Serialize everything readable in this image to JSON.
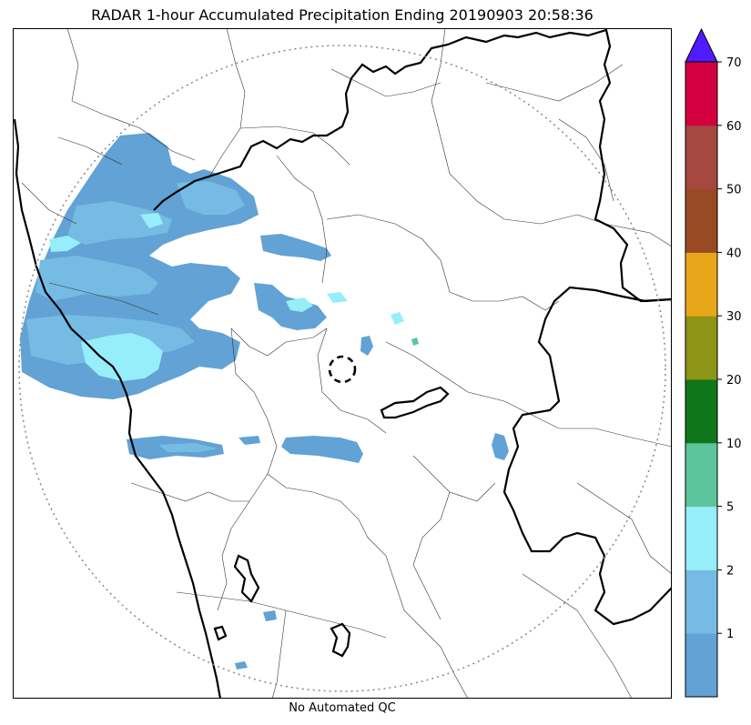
{
  "title": "RADAR 1-hour Accumulated Precipitation Ending 20190903 20:58:36",
  "footer": "No Automated QC",
  "colorbar": {
    "levels": [
      "1",
      "2",
      "5",
      "10",
      "20",
      "30",
      "40",
      "50",
      "60",
      "70"
    ],
    "colors": [
      "#62a2d4",
      "#76bbe3",
      "#96eefb",
      "#5dc49b",
      "#10761a",
      "#8c9515",
      "#e8a718",
      "#994a25",
      "#a54840",
      "#d30040"
    ],
    "extend_color": "#4e1cff"
  },
  "map_colors": {
    "light": "#62a2d4",
    "medium": "#76bbe3",
    "heavy": "#96eefb",
    "intense": "#5dc49b"
  }
}
